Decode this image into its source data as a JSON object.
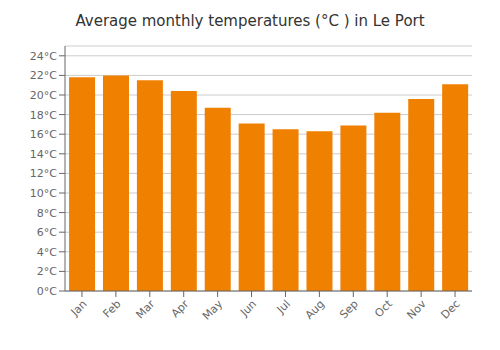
{
  "chart_data": {
    "type": "bar",
    "title": "Average monthly temperatures (°C ) in Le Port",
    "categories": [
      "Jan",
      "Feb",
      "Mar",
      "Apr",
      "May",
      "Jun",
      "Jul",
      "Aug",
      "Sep",
      "Oct",
      "Nov",
      "Dec"
    ],
    "values": [
      21.8,
      22.0,
      21.5,
      20.4,
      18.7,
      17.1,
      16.5,
      16.3,
      16.9,
      18.2,
      19.6,
      21.1
    ],
    "color": "#F08000",
    "ylim": [
      0,
      25
    ],
    "yticks": [
      {
        "value": 0,
        "label": "0°C"
      },
      {
        "value": 2,
        "label": "2°C"
      },
      {
        "value": 4,
        "label": "4°C"
      },
      {
        "value": 6,
        "label": "6°C"
      },
      {
        "value": 8,
        "label": "8°C"
      },
      {
        "value": 10,
        "label": "10°C"
      },
      {
        "value": 12,
        "label": "12°C"
      },
      {
        "value": 14,
        "label": "14°C"
      },
      {
        "value": 16,
        "label": "16°C"
      },
      {
        "value": 18,
        "label": "18°C"
      },
      {
        "value": 20,
        "label": "20°C"
      },
      {
        "value": 22,
        "label": "22°C"
      },
      {
        "value": 24,
        "label": "24°C"
      }
    ],
    "grid": true
  }
}
